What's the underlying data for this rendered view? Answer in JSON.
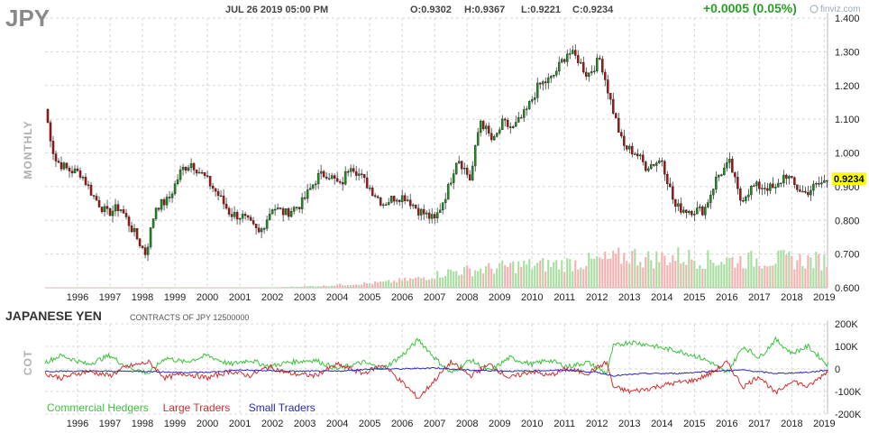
{
  "header": {
    "ticker": "JPY",
    "datetime": "JUL 26 2019 05:00 PM",
    "open": "O:0.9302",
    "high": "H:0.9367",
    "low": "L:0.9221",
    "close": "C:0.9234",
    "change": "+0.0005 (0.05%)",
    "brand": "finviz.com",
    "period_label": "MONTHLY",
    "last_price_label": "0.9234"
  },
  "colors": {
    "up": "#1a8f1a",
    "down": "#b01010",
    "vol_up": "#a8dca0",
    "vol_down": "#f4b0b0",
    "commercial": "#3cc23c",
    "large": "#d03030",
    "small": "#2a2ab0",
    "grid": "#d8d8d8",
    "last_price_bg": "#ffff00"
  },
  "cot": {
    "title": "JAPANESE YEN",
    "contracts_label": "CONTRACTS OF JPY 12500000",
    "side_label": "COT",
    "legend": [
      {
        "label": "Commercial Hedgers",
        "color": "#3cc23c"
      },
      {
        "label": "Large Traders",
        "color": "#d03030"
      },
      {
        "label": "Small Traders",
        "color": "#2a2ab0"
      }
    ]
  },
  "chart_data": [
    {
      "type": "candlestick",
      "title": "JPY",
      "x_start": 1995.5,
      "x_end": 2019.6,
      "ylim": [
        0.6,
        1.4
      ],
      "yticks": [
        "1.400",
        "1.300",
        "1.200",
        "1.100",
        "1.000",
        "0.900",
        "0.800",
        "0.700",
        "0.600"
      ],
      "ytick_values": [
        1.4,
        1.3,
        1.2,
        1.1,
        1.0,
        0.9,
        0.8,
        0.7,
        0.6
      ],
      "xticks": [
        "1996",
        "1997",
        "1998",
        "1999",
        "2000",
        "2001",
        "2002",
        "2003",
        "2004",
        "2005",
        "2006",
        "2007",
        "2008",
        "2009",
        "2010",
        "2011",
        "2012",
        "2013",
        "2014",
        "2015",
        "2016",
        "2017",
        "2018",
        "2019"
      ],
      "last_price": 0.9234,
      "path_points": [
        [
          1995.5,
          1.13
        ],
        [
          1995.8,
          0.98
        ],
        [
          1996.2,
          0.95
        ],
        [
          1996.6,
          0.94
        ],
        [
          1997.0,
          0.87
        ],
        [
          1997.4,
          0.82
        ],
        [
          1997.8,
          0.84
        ],
        [
          1998.2,
          0.77
        ],
        [
          1998.6,
          0.7
        ],
        [
          1998.9,
          0.84
        ],
        [
          1999.3,
          0.86
        ],
        [
          1999.7,
          0.95
        ],
        [
          2000.0,
          0.97
        ],
        [
          2000.4,
          0.93
        ],
        [
          2000.8,
          0.88
        ],
        [
          2001.2,
          0.82
        ],
        [
          2001.6,
          0.81
        ],
        [
          2002.1,
          0.76
        ],
        [
          2002.5,
          0.84
        ],
        [
          2002.9,
          0.82
        ],
        [
          2003.4,
          0.85
        ],
        [
          2003.9,
          0.93
        ],
        [
          2004.2,
          0.94
        ],
        [
          2004.6,
          0.9
        ],
        [
          2004.9,
          0.97
        ],
        [
          2005.3,
          0.92
        ],
        [
          2005.9,
          0.85
        ],
        [
          2006.3,
          0.87
        ],
        [
          2006.6,
          0.87
        ],
        [
          2007.0,
          0.83
        ],
        [
          2007.5,
          0.8
        ],
        [
          2007.9,
          0.89
        ],
        [
          2008.2,
          0.99
        ],
        [
          2008.6,
          0.92
        ],
        [
          2008.9,
          1.1
        ],
        [
          2009.3,
          1.03
        ],
        [
          2009.6,
          1.09
        ],
        [
          2009.9,
          1.07
        ],
        [
          2010.3,
          1.12
        ],
        [
          2010.7,
          1.2
        ],
        [
          2011.1,
          1.22
        ],
        [
          2011.6,
          1.3
        ],
        [
          2011.9,
          1.28
        ],
        [
          2012.2,
          1.23
        ],
        [
          2012.6,
          1.28
        ],
        [
          2012.9,
          1.16
        ],
        [
          2013.3,
          1.02
        ],
        [
          2013.7,
          1.0
        ],
        [
          2014.0,
          0.96
        ],
        [
          2014.5,
          0.98
        ],
        [
          2014.9,
          0.84
        ],
        [
          2015.3,
          0.83
        ],
        [
          2015.8,
          0.83
        ],
        [
          2016.2,
          0.93
        ],
        [
          2016.6,
          0.97
        ],
        [
          2016.9,
          0.86
        ],
        [
          2017.3,
          0.9
        ],
        [
          2017.7,
          0.9
        ],
        [
          2018.0,
          0.89
        ],
        [
          2018.3,
          0.94
        ],
        [
          2018.6,
          0.9
        ],
        [
          2018.9,
          0.88
        ],
        [
          2019.2,
          0.9
        ],
        [
          2019.6,
          0.92
        ]
      ]
    },
    {
      "type": "bar",
      "title": "",
      "series_name": "",
      "note": "volume",
      "x_start": 1995.5,
      "x_end": 2019.6,
      "envelope": [
        [
          1995.5,
          0.002
        ],
        [
          2002.5,
          0.005
        ],
        [
          2003.0,
          0.02
        ],
        [
          2004.0,
          0.04
        ],
        [
          2005.0,
          0.08
        ],
        [
          2006.0,
          0.12
        ],
        [
          2007.0,
          0.2
        ],
        [
          2008.0,
          0.35
        ],
        [
          2009.0,
          0.4
        ],
        [
          2010.0,
          0.48
        ],
        [
          2011.0,
          0.5
        ],
        [
          2012.0,
          0.55
        ],
        [
          2013.0,
          0.62
        ],
        [
          2013.5,
          0.72
        ],
        [
          2014.0,
          0.62
        ],
        [
          2015.0,
          0.68
        ],
        [
          2016.0,
          0.6
        ],
        [
          2017.0,
          0.6
        ],
        [
          2018.0,
          0.62
        ],
        [
          2019.6,
          0.58
        ]
      ]
    },
    {
      "type": "line",
      "title": "JAPANESE YEN",
      "ylim": [
        -200000,
        200000
      ],
      "yticks": [
        "200K",
        "100K",
        "0",
        "-100K",
        "-200K"
      ],
      "ytick_values": [
        200000,
        100000,
        0,
        -100000,
        -200000
      ],
      "xticks": [
        "1996",
        "1997",
        "1998",
        "1999",
        "2000",
        "2001",
        "2002",
        "2003",
        "2004",
        "2005",
        "2006",
        "2007",
        "2008",
        "2009",
        "2010",
        "2011",
        "2012",
        "2013",
        "2014",
        "2015",
        "2016",
        "2017",
        "2018",
        "2019"
      ],
      "x_start": 1995.5,
      "x_end": 2019.6,
      "series": [
        {
          "name": "Commercial Hedgers",
          "points": [
            [
              1995.5,
              30000
            ],
            [
              1996.0,
              60000
            ],
            [
              1996.8,
              20000
            ],
            [
              1997.5,
              60000
            ],
            [
              1998.0,
              10000
            ],
            [
              1998.7,
              -20000
            ],
            [
              1999.2,
              50000
            ],
            [
              1999.8,
              30000
            ],
            [
              2000.5,
              60000
            ],
            [
              2001.2,
              20000
            ],
            [
              2001.8,
              40000
            ],
            [
              2002.4,
              10000
            ],
            [
              2003.0,
              30000
            ],
            [
              2003.8,
              40000
            ],
            [
              2004.5,
              0
            ],
            [
              2005.3,
              30000
            ],
            [
              2005.9,
              0
            ],
            [
              2006.5,
              60000
            ],
            [
              2007.0,
              130000
            ],
            [
              2007.5,
              50000
            ],
            [
              2008.0,
              -20000
            ],
            [
              2008.6,
              40000
            ],
            [
              2009.2,
              -10000
            ],
            [
              2009.8,
              50000
            ],
            [
              2010.5,
              20000
            ],
            [
              2011.0,
              40000
            ],
            [
              2011.6,
              10000
            ],
            [
              2012.2,
              30000
            ],
            [
              2012.8,
              -20000
            ],
            [
              2013.0,
              100000
            ],
            [
              2013.5,
              120000
            ],
            [
              2014.0,
              110000
            ],
            [
              2014.6,
              90000
            ],
            [
              2015.0,
              80000
            ],
            [
              2015.5,
              60000
            ],
            [
              2016.0,
              30000
            ],
            [
              2016.5,
              -20000
            ],
            [
              2017.0,
              100000
            ],
            [
              2017.5,
              50000
            ],
            [
              2018.0,
              130000
            ],
            [
              2018.5,
              70000
            ],
            [
              2019.0,
              100000
            ],
            [
              2019.6,
              20000
            ]
          ]
        },
        {
          "name": "Large Traders",
          "points": [
            [
              1995.5,
              -20000
            ],
            [
              1996.0,
              -40000
            ],
            [
              1996.8,
              -10000
            ],
            [
              1997.5,
              -30000
            ],
            [
              1998.0,
              10000
            ],
            [
              1998.7,
              30000
            ],
            [
              1999.2,
              -40000
            ],
            [
              1999.8,
              -20000
            ],
            [
              2000.5,
              -40000
            ],
            [
              2001.2,
              -10000
            ],
            [
              2001.8,
              -30000
            ],
            [
              2002.4,
              10000
            ],
            [
              2003.0,
              -20000
            ],
            [
              2003.8,
              -30000
            ],
            [
              2004.5,
              20000
            ],
            [
              2005.3,
              -20000
            ],
            [
              2005.9,
              20000
            ],
            [
              2006.5,
              -60000
            ],
            [
              2007.0,
              -130000
            ],
            [
              2007.5,
              -50000
            ],
            [
              2008.0,
              30000
            ],
            [
              2008.6,
              -30000
            ],
            [
              2009.2,
              20000
            ],
            [
              2009.8,
              -40000
            ],
            [
              2010.5,
              -10000
            ],
            [
              2011.0,
              -30000
            ],
            [
              2011.6,
              0
            ],
            [
              2012.2,
              -20000
            ],
            [
              2012.8,
              30000
            ],
            [
              2013.0,
              -80000
            ],
            [
              2013.5,
              -100000
            ],
            [
              2014.0,
              -90000
            ],
            [
              2014.6,
              -70000
            ],
            [
              2015.0,
              -60000
            ],
            [
              2015.5,
              -50000
            ],
            [
              2016.0,
              -20000
            ],
            [
              2016.5,
              30000
            ],
            [
              2017.0,
              -80000
            ],
            [
              2017.5,
              -30000
            ],
            [
              2018.0,
              -110000
            ],
            [
              2018.5,
              -50000
            ],
            [
              2019.0,
              -80000
            ],
            [
              2019.6,
              -10000
            ]
          ]
        },
        {
          "name": "Small Traders",
          "points": [
            [
              1995.5,
              -10000
            ],
            [
              1997.0,
              -10000
            ],
            [
              1998.5,
              -10000
            ],
            [
              1999.5,
              -15000
            ],
            [
              2000.5,
              -15000
            ],
            [
              2001.5,
              -5000
            ],
            [
              2003.0,
              -10000
            ],
            [
              2004.5,
              -10000
            ],
            [
              2005.5,
              0
            ],
            [
              2006.5,
              0
            ],
            [
              2007.5,
              5000
            ],
            [
              2008.5,
              -5000
            ],
            [
              2010.0,
              -10000
            ],
            [
              2011.5,
              -5000
            ],
            [
              2012.5,
              -15000
            ],
            [
              2013.0,
              -30000
            ],
            [
              2014.0,
              -20000
            ],
            [
              2015.0,
              -20000
            ],
            [
              2016.0,
              -10000
            ],
            [
              2017.0,
              -5000
            ],
            [
              2018.0,
              -20000
            ],
            [
              2019.0,
              -15000
            ],
            [
              2019.6,
              -5000
            ]
          ]
        }
      ]
    }
  ]
}
